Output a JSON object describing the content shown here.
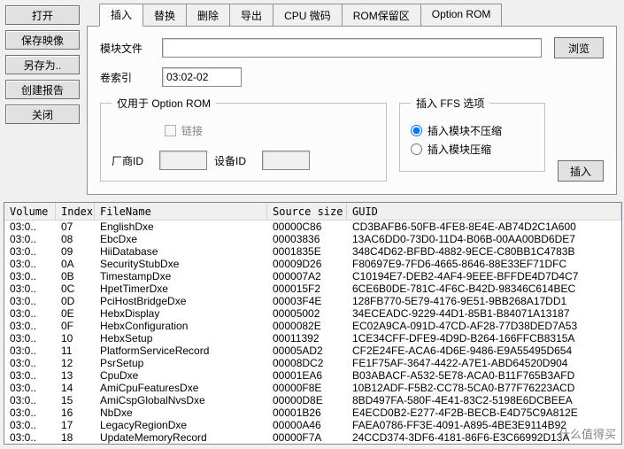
{
  "sidebar": {
    "open": "打开",
    "save_image": "保存映像",
    "save_as": "另存为..",
    "create_report": "创建报告",
    "close": "关闭"
  },
  "tabs": {
    "insert": "插入",
    "replace": "替换",
    "delete": "删除",
    "export": "导出",
    "cpu_microcode": "CPU 微码",
    "rom_reserve": "ROM保留区",
    "option_rom": "Option ROM"
  },
  "panel": {
    "module_file_label": "模块文件",
    "module_file_value": "",
    "browse": "浏览",
    "volume_index_label": "卷索引",
    "volume_index_value": "03:02-02",
    "option_rom_group": "仅用于 Option ROM",
    "link_label": "链接",
    "vendor_id_label": "厂商ID",
    "device_id_label": "设备ID",
    "ffs_group": "插入 FFS 选项",
    "ffs_no_compress": "插入模块不压缩",
    "ffs_compress": "插入模块压缩",
    "insert_btn": "插入"
  },
  "table": {
    "headers": {
      "volume": "Volume",
      "index": "Index",
      "filename": "FileName",
      "source_size": "Source size",
      "guid": "GUID"
    },
    "rows": [
      {
        "v": "03:0..",
        "i": "07",
        "n": "EnglishDxe",
        "s": "00000C86",
        "g": "CD3BAFB6-50FB-4FE8-8E4E-AB74D2C1A600"
      },
      {
        "v": "03:0..",
        "i": "08",
        "n": "EbcDxe",
        "s": "00003836",
        "g": "13AC6DD0-73D0-11D4-B06B-00AA00BD6DE7"
      },
      {
        "v": "03:0..",
        "i": "09",
        "n": "HiiDatabase",
        "s": "0001835E",
        "g": "348C4D62-BFBD-4882-9ECE-C80BB1C4783B"
      },
      {
        "v": "03:0..",
        "i": "0A",
        "n": "SecurityStubDxe",
        "s": "00009D26",
        "g": "F80697E9-7FD6-4665-8646-88E33EF71DFC"
      },
      {
        "v": "03:0..",
        "i": "0B",
        "n": "TimestampDxe",
        "s": "000007A2",
        "g": "C10194E7-DEB2-4AF4-9EEE-BFFDE4D7D4C7"
      },
      {
        "v": "03:0..",
        "i": "0C",
        "n": "HpetTimerDxe",
        "s": "000015F2",
        "g": "6CE6B0DE-781C-4F6C-B42D-98346C614BEC"
      },
      {
        "v": "03:0..",
        "i": "0D",
        "n": "PciHostBridgeDxe",
        "s": "00003F4E",
        "g": "128FB770-5E79-4176-9E51-9BB268A17DD1"
      },
      {
        "v": "03:0..",
        "i": "0E",
        "n": "HebxDisplay",
        "s": "00005002",
        "g": "34ECEADC-9229-44D1-85B1-B84071A13187"
      },
      {
        "v": "03:0..",
        "i": "0F",
        "n": "HebxConfiguration",
        "s": "0000082E",
        "g": "EC02A9CA-091D-47CD-AF28-77D38DED7A53"
      },
      {
        "v": "03:0..",
        "i": "10",
        "n": "HebxSetup",
        "s": "00011392",
        "g": "1CE34CFF-DFE9-4D9D-B264-166FFCB8315A"
      },
      {
        "v": "03:0..",
        "i": "11",
        "n": "PlatformServiceRecord",
        "s": "00005AD2",
        "g": "CF2E24FE-ACA6-4D6E-9486-E9A55495D654"
      },
      {
        "v": "03:0..",
        "i": "12",
        "n": "PsrSetup",
        "s": "00008DC2",
        "g": "FE1F75AF-3647-4422-A7E1-ABD64520D904"
      },
      {
        "v": "03:0..",
        "i": "13",
        "n": "CpuDxe",
        "s": "00001EA6",
        "g": "B03ABACF-A532-5E78-ACA0-B11F765B3AFD"
      },
      {
        "v": "03:0..",
        "i": "14",
        "n": "AmiCpuFeaturesDxe",
        "s": "00000F8E",
        "g": "10B12ADF-F5B2-CC78-5CA0-B77F76223ACD"
      },
      {
        "v": "03:0..",
        "i": "15",
        "n": "AmiCspGlobalNvsDxe",
        "s": "00000D8E",
        "g": "8BD497FA-580F-4E41-83C2-5198E6DCBEEA"
      },
      {
        "v": "03:0..",
        "i": "16",
        "n": "NbDxe",
        "s": "00001B26",
        "g": "E4ECD0B2-E277-4F2B-BECB-E4D75C9A812E"
      },
      {
        "v": "03:0..",
        "i": "17",
        "n": "LegacyRegionDxe",
        "s": "00000A46",
        "g": "FAEA0786-FF3E-4091-A895-4BE3E9114B92"
      },
      {
        "v": "03:0..",
        "i": "18",
        "n": "UpdateMemoryRecord",
        "s": "00000F7A",
        "g": "24CCD374-3DF6-4181-86F6-E3C66992D13A"
      }
    ]
  },
  "watermark": "什么值得买"
}
